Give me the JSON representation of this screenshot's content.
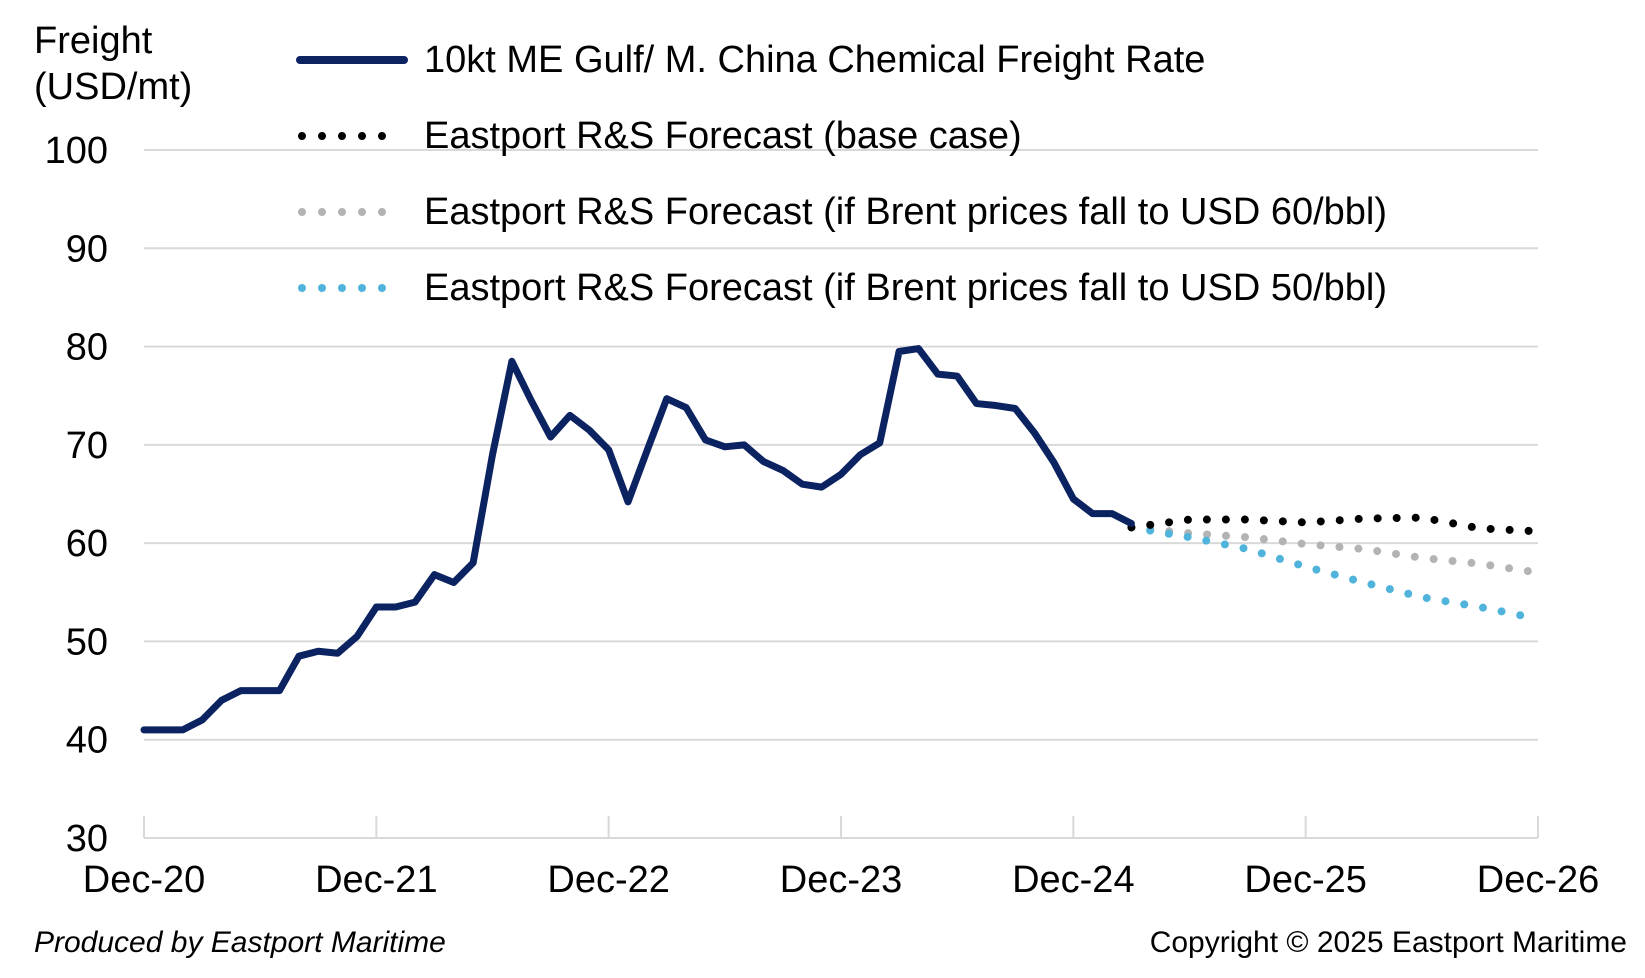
{
  "chart_data": {
    "type": "line",
    "yaxis_title": [
      "Freight",
      "(USD/mt)"
    ],
    "ylim": [
      30,
      100
    ],
    "yticks": [
      30,
      40,
      50,
      60,
      70,
      80,
      90,
      100
    ],
    "x_months_range": [
      0,
      72
    ],
    "x_tick_labels": [
      {
        "label": "Dec-20",
        "month": 0
      },
      {
        "label": "Dec-21",
        "month": 12
      },
      {
        "label": "Dec-22",
        "month": 24
      },
      {
        "label": "Dec-23",
        "month": 36
      },
      {
        "label": "Dec-24",
        "month": 48
      },
      {
        "label": "Dec-25",
        "month": 60
      },
      {
        "label": "Dec-26",
        "month": 72
      }
    ],
    "series": [
      {
        "name": "10kt ME Gulf/ M. China Chemical Freight Rate",
        "style": "solid",
        "color": "#0b2361",
        "x": [
          0,
          1,
          2,
          3,
          4,
          5,
          6,
          7,
          8,
          9,
          10,
          11,
          12,
          13,
          14,
          15,
          16,
          17,
          18,
          19,
          20,
          21,
          22,
          23,
          24,
          25,
          26,
          27,
          28,
          29,
          30,
          31,
          32,
          33,
          34,
          35,
          36,
          37,
          38,
          39,
          40,
          41,
          42,
          43,
          44,
          45,
          46,
          47,
          48,
          49,
          50,
          51
        ],
        "values": [
          41,
          41,
          41,
          42,
          44,
          45,
          45,
          45,
          48.5,
          49,
          48.8,
          50.5,
          53.5,
          53.5,
          54,
          56.8,
          56,
          58,
          69,
          78.5,
          74.5,
          70.8,
          73,
          71.5,
          69.5,
          64.2,
          69.5,
          74.7,
          73.8,
          70.5,
          69.8,
          70,
          68.3,
          67.4,
          66,
          65.7,
          67,
          69,
          70.2,
          79.5,
          79.8,
          77.2,
          77,
          74.2,
          74,
          73.7,
          71.2,
          68.2,
          64.5,
          63,
          63,
          62
        ]
      },
      {
        "name": "Eastport R&S Forecast (base case)",
        "style": "dotted",
        "color": "#000000",
        "x": [
          51,
          54,
          57,
          60,
          63,
          66,
          69,
          72
        ],
        "values": [
          61.6,
          62.4,
          62.4,
          62.1,
          62.5,
          62.6,
          61.5,
          61.2
        ]
      },
      {
        "name": "Eastport R&S Forecast (if Brent prices fall to USD 60/bbl)",
        "style": "dotted",
        "color": "#b3b3b3",
        "x": [
          51,
          54,
          57,
          60,
          63,
          66,
          69,
          72
        ],
        "values": [
          61.6,
          61,
          60.6,
          59.9,
          59.4,
          58.5,
          57.9,
          57
        ]
      },
      {
        "name": "Eastport R&S Forecast (if Brent prices fall to USD 50/bbl)",
        "style": "dotted",
        "color": "#4fb3dc",
        "x": [
          51,
          54,
          57,
          60,
          63,
          66,
          69,
          72
        ],
        "values": [
          61.6,
          60.6,
          59.4,
          57.6,
          56,
          54.5,
          53.5,
          52.3
        ]
      }
    ]
  },
  "footer": {
    "produced_by": "Produced by Eastport Maritime",
    "copyright": "Copyright © 2025 Eastport Maritime"
  }
}
